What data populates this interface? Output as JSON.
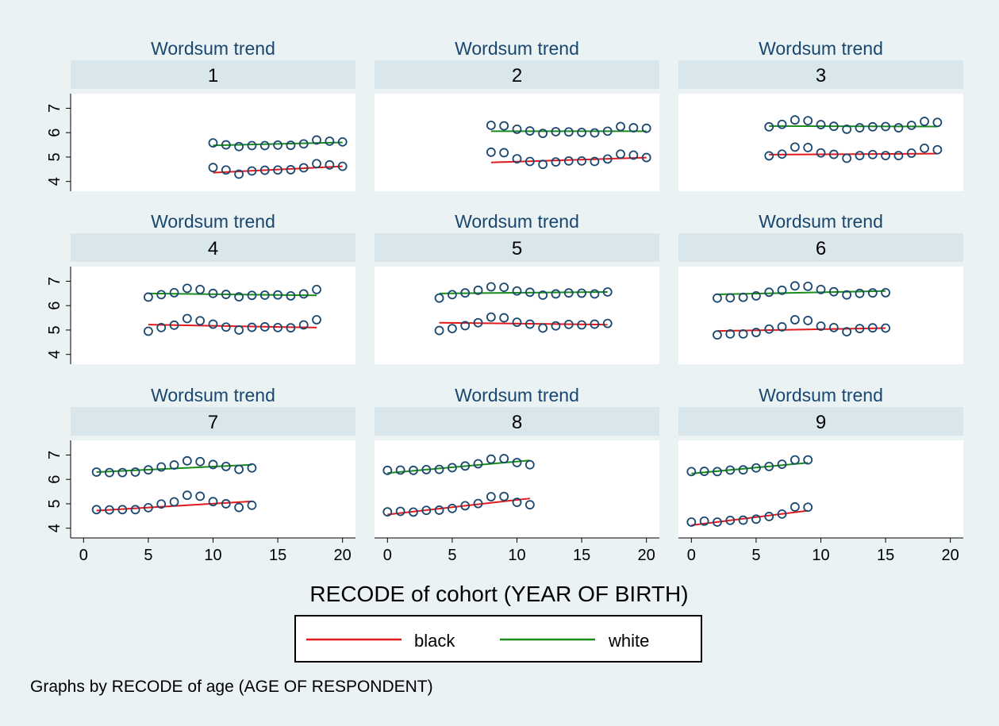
{
  "chart_data": {
    "type": "scatter",
    "panel_title": "Wordsum trend",
    "xlabel": "RECODE of cohort (YEAR OF BIRTH)",
    "ylabel": "",
    "xlim": [
      -1,
      21
    ],
    "ylim": [
      3.6,
      7.6
    ],
    "xticks": [
      0,
      5,
      10,
      15,
      20
    ],
    "yticks": [
      4,
      5,
      6,
      7
    ],
    "note": "Graphs by RECODE of age (AGE OF RESPONDENT)",
    "legend": [
      {
        "name": "black",
        "color": "#e31a1c"
      },
      {
        "name": "white",
        "color": "#1a8c1a"
      }
    ],
    "colors": {
      "marker": "#1a476f",
      "strip_bg": "#d9e6eb",
      "plot_bg": "#ffffff",
      "page_bg": "#eaf2f3"
    },
    "panels": [
      {
        "label": "1",
        "white": {
          "x": [
            10,
            11,
            12,
            13,
            14,
            15,
            16,
            17,
            18,
            19,
            20
          ],
          "y": [
            5.58,
            5.5,
            5.43,
            5.47,
            5.47,
            5.49,
            5.48,
            5.54,
            5.7,
            5.65,
            5.62
          ],
          "fit": [
            5.48,
            5.6
          ]
        },
        "black": {
          "x": [
            10,
            11,
            12,
            13,
            14,
            15,
            16,
            17,
            18,
            19,
            20
          ],
          "y": [
            4.57,
            4.47,
            4.3,
            4.43,
            4.46,
            4.47,
            4.48,
            4.56,
            4.73,
            4.68,
            4.62
          ],
          "fit": [
            4.36,
            4.62
          ]
        }
      },
      {
        "label": "2",
        "white": {
          "x": [
            8,
            9,
            10,
            11,
            12,
            13,
            14,
            15,
            16,
            17,
            18,
            19,
            20
          ],
          "y": [
            6.3,
            6.28,
            6.14,
            6.07,
            5.97,
            6.04,
            6.03,
            6.01,
            5.99,
            6.06,
            6.25,
            6.2,
            6.18
          ],
          "fit": [
            6.06,
            6.06
          ]
        },
        "black": {
          "x": [
            8,
            9,
            10,
            11,
            12,
            13,
            14,
            15,
            16,
            17,
            18,
            19,
            20
          ],
          "y": [
            5.2,
            5.18,
            4.93,
            4.82,
            4.7,
            4.8,
            4.84,
            4.84,
            4.82,
            4.92,
            5.12,
            5.08,
            4.98
          ],
          "fit": [
            4.78,
            4.98
          ]
        }
      },
      {
        "label": "3",
        "white": {
          "x": [
            6,
            7,
            8,
            9,
            10,
            11,
            12,
            13,
            14,
            15,
            16,
            17,
            18,
            19
          ],
          "y": [
            6.24,
            6.34,
            6.52,
            6.49,
            6.33,
            6.26,
            6.14,
            6.2,
            6.24,
            6.25,
            6.2,
            6.3,
            6.46,
            6.42
          ],
          "fit": [
            6.27,
            6.25
          ]
        },
        "black": {
          "x": [
            6,
            7,
            8,
            9,
            10,
            11,
            12,
            13,
            14,
            15,
            16,
            17,
            18,
            19
          ],
          "y": [
            5.05,
            5.12,
            5.41,
            5.39,
            5.17,
            5.11,
            4.95,
            5.06,
            5.1,
            5.06,
            5.06,
            5.16,
            5.36,
            5.3
          ],
          "fit": [
            5.1,
            5.14
          ]
        }
      },
      {
        "label": "4",
        "white": {
          "x": [
            5,
            6,
            7,
            8,
            9,
            10,
            11,
            12,
            13,
            14,
            15,
            16,
            17,
            18
          ],
          "y": [
            6.35,
            6.45,
            6.53,
            6.71,
            6.66,
            6.5,
            6.46,
            6.36,
            6.42,
            6.43,
            6.44,
            6.4,
            6.48,
            6.66
          ],
          "fit": [
            6.5,
            6.42
          ]
        },
        "black": {
          "x": [
            5,
            6,
            7,
            8,
            9,
            10,
            11,
            12,
            13,
            14,
            15,
            16,
            17,
            18
          ],
          "y": [
            4.95,
            5.1,
            5.2,
            5.47,
            5.38,
            5.24,
            5.12,
            5.0,
            5.11,
            5.13,
            5.1,
            5.09,
            5.21,
            5.42
          ],
          "fit": [
            5.22,
            5.1
          ]
        }
      },
      {
        "label": "5",
        "white": {
          "x": [
            4,
            5,
            6,
            7,
            8,
            9,
            10,
            11,
            12,
            13,
            14,
            15,
            16,
            17
          ],
          "y": [
            6.31,
            6.45,
            6.52,
            6.63,
            6.77,
            6.75,
            6.6,
            6.55,
            6.43,
            6.48,
            6.52,
            6.51,
            6.48,
            6.56
          ],
          "fit": [
            6.5,
            6.56
          ]
        },
        "black": {
          "x": [
            4,
            5,
            6,
            7,
            8,
            9,
            10,
            11,
            12,
            13,
            14,
            15,
            16,
            17
          ],
          "y": [
            4.98,
            5.06,
            5.18,
            5.3,
            5.53,
            5.5,
            5.32,
            5.24,
            5.08,
            5.17,
            5.23,
            5.21,
            5.24,
            5.27
          ],
          "fit": [
            5.3,
            5.22
          ]
        }
      },
      {
        "label": "6",
        "white": {
          "x": [
            2,
            3,
            4,
            5,
            6,
            7,
            8,
            9,
            10,
            11,
            12,
            13,
            14,
            15
          ],
          "y": [
            6.31,
            6.32,
            6.34,
            6.4,
            6.55,
            6.63,
            6.81,
            6.79,
            6.66,
            6.57,
            6.44,
            6.5,
            6.52,
            6.53
          ],
          "fit": [
            6.46,
            6.6
          ]
        },
        "black": {
          "x": [
            2,
            3,
            4,
            5,
            6,
            7,
            8,
            9,
            10,
            11,
            12,
            13,
            14,
            15
          ],
          "y": [
            4.8,
            4.84,
            4.84,
            4.9,
            5.04,
            5.13,
            5.42,
            5.39,
            5.16,
            5.1,
            4.93,
            5.06,
            5.09,
            5.08
          ],
          "fit": [
            4.96,
            5.08
          ]
        }
      },
      {
        "label": "7",
        "white": {
          "x": [
            1,
            2,
            3,
            4,
            5,
            6,
            7,
            8,
            9,
            10,
            11,
            12,
            13
          ],
          "y": [
            6.3,
            6.28,
            6.28,
            6.3,
            6.39,
            6.51,
            6.59,
            6.76,
            6.73,
            6.61,
            6.53,
            6.41,
            6.47
          ],
          "fit": [
            6.3,
            6.6
          ]
        },
        "black": {
          "x": [
            1,
            2,
            3,
            4,
            5,
            6,
            7,
            8,
            9,
            10,
            11,
            12,
            13
          ],
          "y": [
            4.76,
            4.75,
            4.76,
            4.76,
            4.84,
            4.99,
            5.08,
            5.35,
            5.31,
            5.09,
            5.0,
            4.85,
            4.94
          ],
          "fit": [
            4.72,
            5.1
          ]
        }
      },
      {
        "label": "8",
        "white": {
          "x": [
            0,
            1,
            2,
            3,
            4,
            5,
            6,
            7,
            8,
            9,
            10,
            11
          ],
          "y": [
            6.37,
            6.38,
            6.37,
            6.4,
            6.41,
            6.48,
            6.55,
            6.64,
            6.83,
            6.85,
            6.69,
            6.6
          ],
          "fit": [
            6.26,
            6.78
          ]
        },
        "black": {
          "x": [
            0,
            1,
            2,
            3,
            4,
            5,
            6,
            7,
            8,
            9,
            10,
            11
          ],
          "y": [
            4.67,
            4.69,
            4.66,
            4.73,
            4.74,
            4.81,
            4.92,
            5.01,
            5.29,
            5.3,
            5.06,
            4.96
          ],
          "fit": [
            4.56,
            5.22
          ]
        }
      },
      {
        "label": "9",
        "white": {
          "x": [
            0,
            1,
            2,
            3,
            4,
            5,
            6,
            7,
            8,
            9
          ],
          "y": [
            6.32,
            6.33,
            6.32,
            6.38,
            6.39,
            6.47,
            6.53,
            6.62,
            6.8,
            6.8
          ],
          "fit": [
            6.24,
            6.68
          ]
        },
        "black": {
          "x": [
            0,
            1,
            2,
            3,
            4,
            5,
            6,
            7,
            8,
            9
          ],
          "y": [
            4.25,
            4.29,
            4.25,
            4.32,
            4.33,
            4.37,
            4.48,
            4.58,
            4.87,
            4.86
          ],
          "fit": [
            4.12,
            4.72
          ]
        }
      }
    ]
  }
}
